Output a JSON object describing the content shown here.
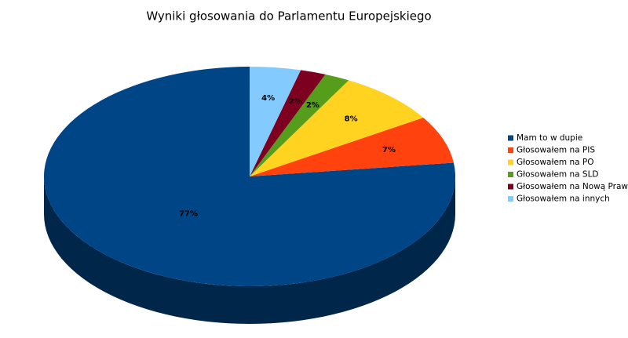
{
  "chart_data": {
    "type": "pie",
    "title": "Wyniki głosowania do Parlamentu Europejskiego",
    "categories": [
      "Mam to w dupie",
      "Głosowałem na PIS",
      "Głosowałem na PO",
      "Głosowałem na SLD",
      "Głosowałem na Nową Prawicę",
      "Głosowałem na innych"
    ],
    "values": [
      77,
      7,
      8,
      2,
      2,
      4
    ],
    "value_labels": [
      "77%",
      "7%",
      "8%",
      "2%",
      "2%",
      "4%"
    ],
    "colors": [
      "#004586",
      "#ff420e",
      "#ffd320",
      "#579d1c",
      "#7e0021",
      "#83caff"
    ],
    "legend": "right"
  }
}
